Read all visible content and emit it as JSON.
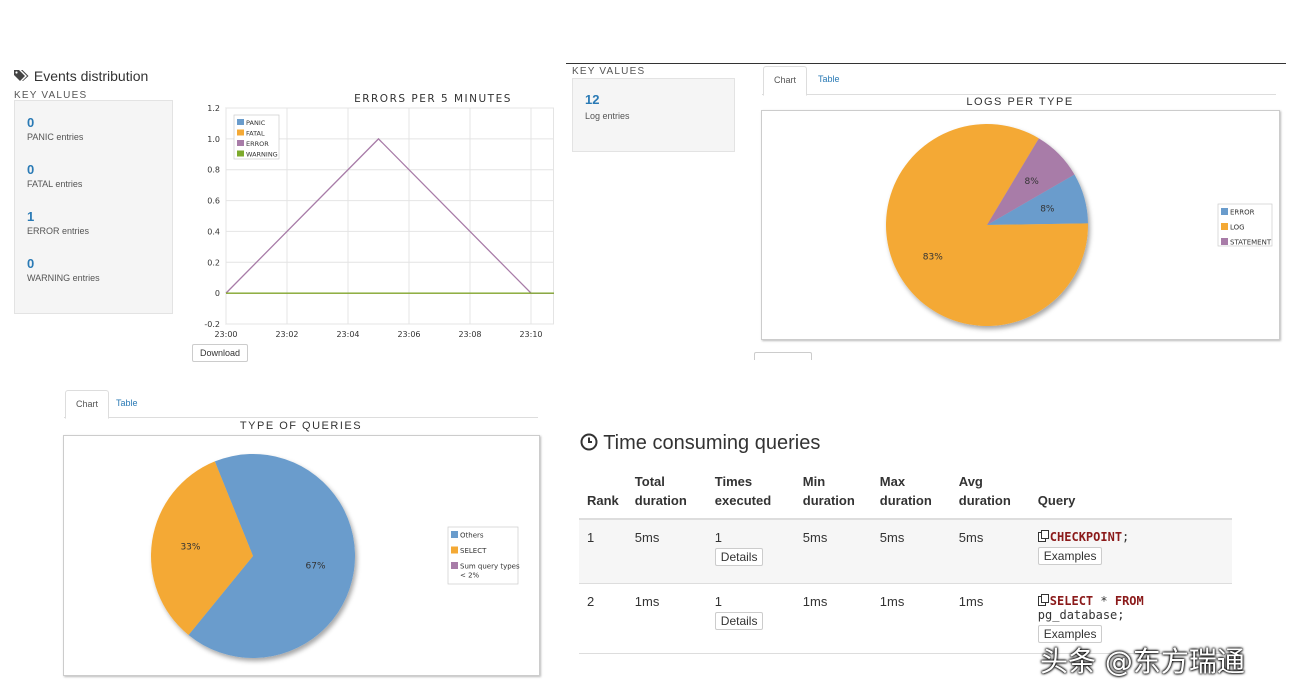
{
  "events": {
    "icon": "tags-icon",
    "title": "Events distribution",
    "kv_label": "KEY VALUES",
    "items": [
      {
        "value": "0",
        "label": "PANIC entries"
      },
      {
        "value": "0",
        "label": "FATAL entries"
      },
      {
        "value": "1",
        "label": "ERROR entries"
      },
      {
        "value": "0",
        "label": "WARNING entries"
      }
    ],
    "download_label": "Download"
  },
  "logs": {
    "kv_label": "KEY VALUES",
    "value": "12",
    "label": "Log entries",
    "tabs": [
      {
        "label": "Chart"
      },
      {
        "label": "Table"
      }
    ]
  },
  "queries_type": {
    "tabs": [
      {
        "label": "Chart"
      },
      {
        "label": "Table"
      }
    ]
  },
  "time_consuming": {
    "icon": "clock-icon",
    "title": "Time consuming queries",
    "headers": [
      "Rank",
      "Total\nduration",
      "Times\nexecuted",
      "Min\nduration",
      "Max\nduration",
      "Avg\nduration",
      "Query"
    ],
    "rows": [
      {
        "rank": "1",
        "total": "5ms",
        "times": "1",
        "min": "5ms",
        "max": "5ms",
        "avg": "5ms",
        "query_parts": [
          {
            "t": "CHECKPOINT",
            "kw": true
          },
          {
            "t": ";",
            "kw": false
          }
        ]
      },
      {
        "rank": "2",
        "total": "1ms",
        "times": "1",
        "min": "1ms",
        "max": "1ms",
        "avg": "1ms",
        "query_parts": [
          {
            "t": "SELECT",
            "kw": true
          },
          {
            "t": " * ",
            "kw": false
          },
          {
            "t": "FROM",
            "kw": true
          },
          {
            "t": " pg_database;",
            "kw": false
          }
        ]
      }
    ],
    "details_label": "Details",
    "examples_label": "Examples"
  },
  "watermark": "头条 @东方瑞通",
  "chart_data": [
    {
      "type": "line",
      "title": "ERRORS PER 5 MINUTES",
      "x": [
        "23:00",
        "23:05",
        "23:10",
        "23:12"
      ],
      "x_ticks": [
        "23:00",
        "23:02",
        "23:04",
        "23:06",
        "23:08",
        "23:10"
      ],
      "ylim": [
        -0.2,
        1.2
      ],
      "y_ticks": [
        "1.2",
        "1.0",
        "0.8",
        "0.6",
        "0.4",
        "0.2",
        "0",
        "-0.2"
      ],
      "series": [
        {
          "name": "PANIC",
          "color": "#6a9ccc",
          "values": [
            0,
            0,
            0,
            0
          ]
        },
        {
          "name": "FATAL",
          "color": "#f4a935",
          "values": [
            0,
            0,
            0,
            0
          ]
        },
        {
          "name": "ERROR",
          "color": "#a87ca8",
          "values": [
            0,
            1,
            0,
            0
          ]
        },
        {
          "name": "WARNING",
          "color": "#7daa2c",
          "values": [
            0,
            0,
            0,
            0
          ]
        }
      ],
      "legend": "top-left",
      "grid": true
    },
    {
      "type": "pie",
      "title": "LOGS PER TYPE",
      "slices": [
        {
          "name": "ERROR",
          "value": 8,
          "label": "8%",
          "color": "#6a9ccc"
        },
        {
          "name": "LOG",
          "value": 83,
          "label": "83%",
          "color": "#f4a935"
        },
        {
          "name": "STATEMENT",
          "value": 8,
          "label": "8%",
          "color": "#a87ca8"
        }
      ],
      "legend": "right"
    },
    {
      "type": "pie",
      "title": "TYPE OF QUERIES",
      "slices": [
        {
          "name": "Others",
          "value": 67,
          "label": "67%",
          "color": "#6a9ccc"
        },
        {
          "name": "SELECT",
          "value": 33,
          "label": "33%",
          "color": "#f4a935"
        },
        {
          "name": "Sum query types < 2%",
          "value": 0,
          "label": "",
          "color": "#a87ca8"
        }
      ],
      "legend": "right"
    }
  ]
}
